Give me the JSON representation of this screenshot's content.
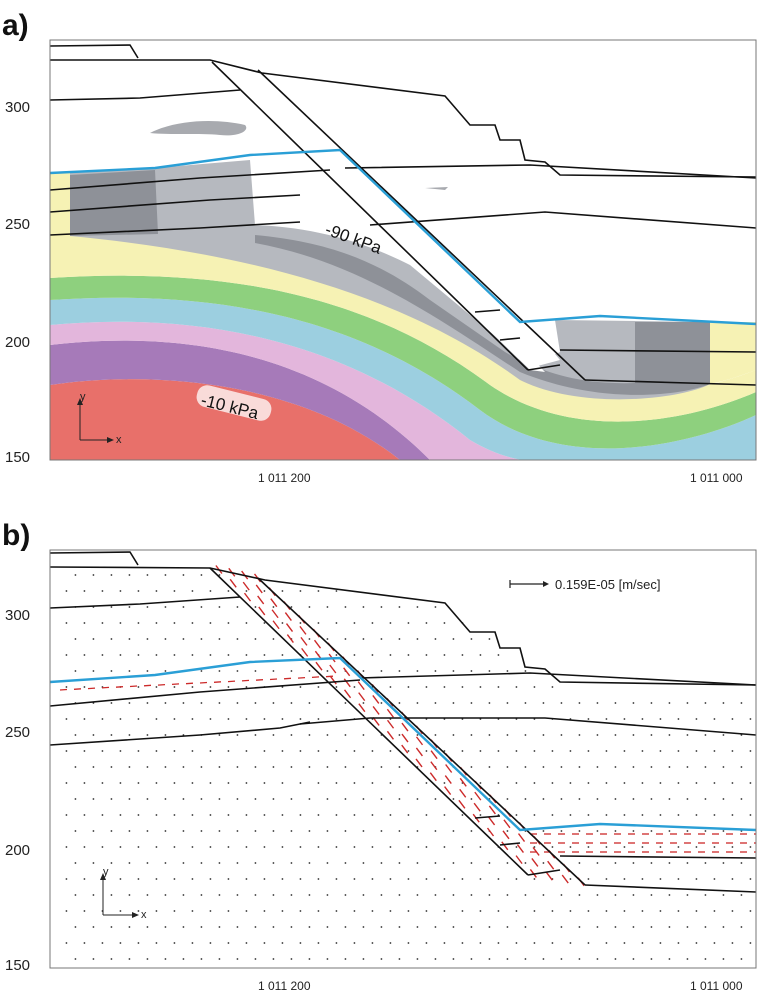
{
  "panels": [
    {
      "letter": "a)",
      "y_ticks": [
        "300",
        "250",
        "200",
        "150"
      ],
      "x_ticks": [
        "1 011 200",
        "1 011 000"
      ],
      "annotations": [
        "-90 kPa",
        "-10 kPa"
      ],
      "axis_labels": {
        "y": "y",
        "x": "x"
      }
    },
    {
      "letter": "b)",
      "y_ticks": [
        "300",
        "250",
        "200",
        "150"
      ],
      "x_ticks": [
        "1 011 200",
        "1 011 000"
      ],
      "legend": {
        "text": "0.159E-05 [m/sec]"
      },
      "axis_labels": {
        "y": "y",
        "x": "x"
      }
    }
  ],
  "colors": {
    "water_table": "#2a9fd6",
    "band_red": "#e8706a",
    "band_purple": "#a67ab9",
    "band_pink": "#e3b6dc",
    "band_blue": "#9ccfe0",
    "band_green": "#8ed07e",
    "band_yellow": "#f6f2b4",
    "band_grey_light": "#b6b9bf",
    "band_grey_dark": "#8e9198",
    "flow_vector": "#cc2a2a"
  }
}
